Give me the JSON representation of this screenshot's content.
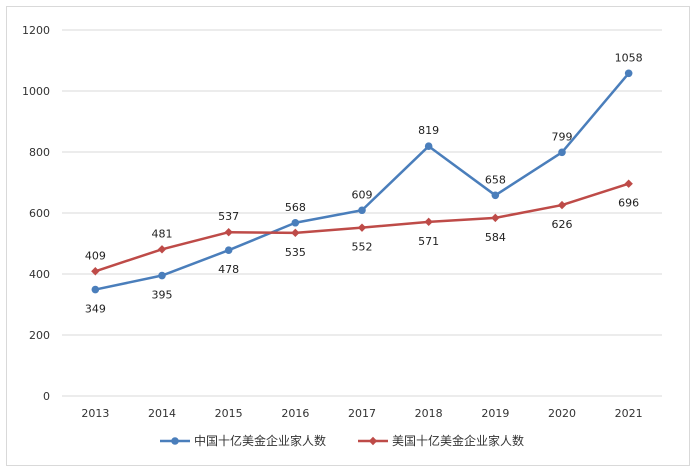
{
  "chart_data": {
    "type": "line",
    "categories": [
      "2013",
      "2014",
      "2015",
      "2016",
      "2017",
      "2018",
      "2019",
      "2020",
      "2021"
    ],
    "ylim": [
      0,
      1200
    ],
    "yticks": [
      0,
      200,
      400,
      600,
      800,
      1000,
      1200
    ],
    "grid": true,
    "legend_position": "bottom",
    "series": [
      {
        "name": "中国十亿美金企业家人数",
        "color": "#4a7ebb",
        "marker": "circle",
        "values": [
          349,
          395,
          478,
          568,
          609,
          819,
          658,
          799,
          1058
        ],
        "label_positions": [
          "below",
          "below",
          "below",
          "above",
          "above",
          "above",
          "above",
          "above",
          "above"
        ]
      },
      {
        "name": "美国十亿美金企业家人数",
        "color": "#be4b48",
        "marker": "diamond",
        "values": [
          409,
          481,
          537,
          535,
          552,
          571,
          584,
          626,
          696
        ],
        "label_positions": [
          "above",
          "above",
          "above",
          "below",
          "below",
          "below",
          "below",
          "below",
          "below"
        ]
      }
    ]
  }
}
